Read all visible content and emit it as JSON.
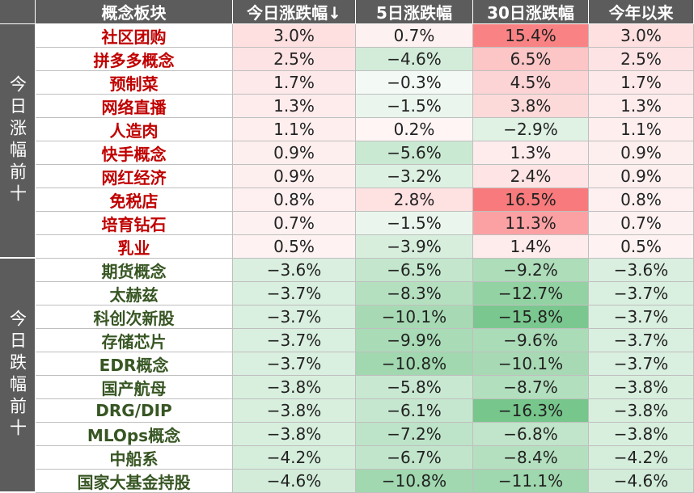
{
  "headers": [
    "概念板块",
    "今日涨跌幅↓",
    "5日涨跌幅",
    "30日涨跌幅",
    "今年以来"
  ],
  "groups": [
    {
      "label": "今日涨幅前十",
      "name_color": "#c00000",
      "rows": [
        {
          "name": "社区团购",
          "today": "3.0%",
          "d5": "0.7%",
          "d30": "15.4%",
          "ytd": "3.0%"
        },
        {
          "name": "拼多多概念",
          "today": "2.5%",
          "d5": "−4.6%",
          "d30": "6.5%",
          "ytd": "2.5%"
        },
        {
          "name": "预制菜",
          "today": "1.7%",
          "d5": "−0.3%",
          "d30": "4.5%",
          "ytd": "1.7%"
        },
        {
          "name": "网络直播",
          "today": "1.3%",
          "d5": "−1.5%",
          "d30": "3.8%",
          "ytd": "1.3%"
        },
        {
          "name": "人造肉",
          "today": "1.1%",
          "d5": "0.2%",
          "d30": "−2.9%",
          "ytd": "1.1%"
        },
        {
          "name": "快手概念",
          "today": "0.9%",
          "d5": "−5.6%",
          "d30": "1.3%",
          "ytd": "0.9%"
        },
        {
          "name": "网红经济",
          "today": "0.9%",
          "d5": "−3.2%",
          "d30": "2.4%",
          "ytd": "0.9%"
        },
        {
          "name": "免税店",
          "today": "0.8%",
          "d5": "2.8%",
          "d30": "16.5%",
          "ytd": "0.8%"
        },
        {
          "name": "培育钻石",
          "today": "0.7%",
          "d5": "−1.5%",
          "d30": "11.3%",
          "ytd": "0.7%"
        },
        {
          "name": "乳业",
          "today": "0.5%",
          "d5": "−3.9%",
          "d30": "1.4%",
          "ytd": "0.5%"
        }
      ]
    },
    {
      "label": "今日跌幅前十",
      "name_color": "#375623",
      "rows": [
        {
          "name": "期货概念",
          "today": "−3.6%",
          "d5": "−6.5%",
          "d30": "−9.2%",
          "ytd": "−3.6%"
        },
        {
          "name": "太赫兹",
          "today": "−3.7%",
          "d5": "−8.3%",
          "d30": "−12.7%",
          "ytd": "−3.7%"
        },
        {
          "name": "科创次新股",
          "today": "−3.7%",
          "d5": "−10.1%",
          "d30": "−15.8%",
          "ytd": "−3.7%"
        },
        {
          "name": "存储芯片",
          "today": "−3.7%",
          "d5": "−9.9%",
          "d30": "−9.6%",
          "ytd": "−3.7%"
        },
        {
          "name": "EDR概念",
          "today": "−3.7%",
          "d5": "−10.8%",
          "d30": "−10.1%",
          "ytd": "−3.7%"
        },
        {
          "name": "国产航母",
          "today": "−3.8%",
          "d5": "−5.8%",
          "d30": "−8.7%",
          "ytd": "−3.8%"
        },
        {
          "name": "DRG/DIP",
          "today": "−3.8%",
          "d5": "−6.1%",
          "d30": "−16.3%",
          "ytd": "−3.8%"
        },
        {
          "name": "MLOps概念",
          "today": "−3.8%",
          "d5": "−7.2%",
          "d30": "−6.8%",
          "ytd": "−3.8%"
        },
        {
          "name": "中船系",
          "today": "−4.2%",
          "d5": "−6.7%",
          "d30": "−8.4%",
          "ytd": "−4.2%"
        },
        {
          "name": "国家大基金持股",
          "today": "−4.6%",
          "d5": "−10.8%",
          "d30": "−11.1%",
          "ytd": "−4.6%"
        }
      ]
    }
  ],
  "colors": {
    "header_bg": "#5c5c5c",
    "positive_tint": "#f8696b",
    "negative_tint": "#63be7b"
  }
}
